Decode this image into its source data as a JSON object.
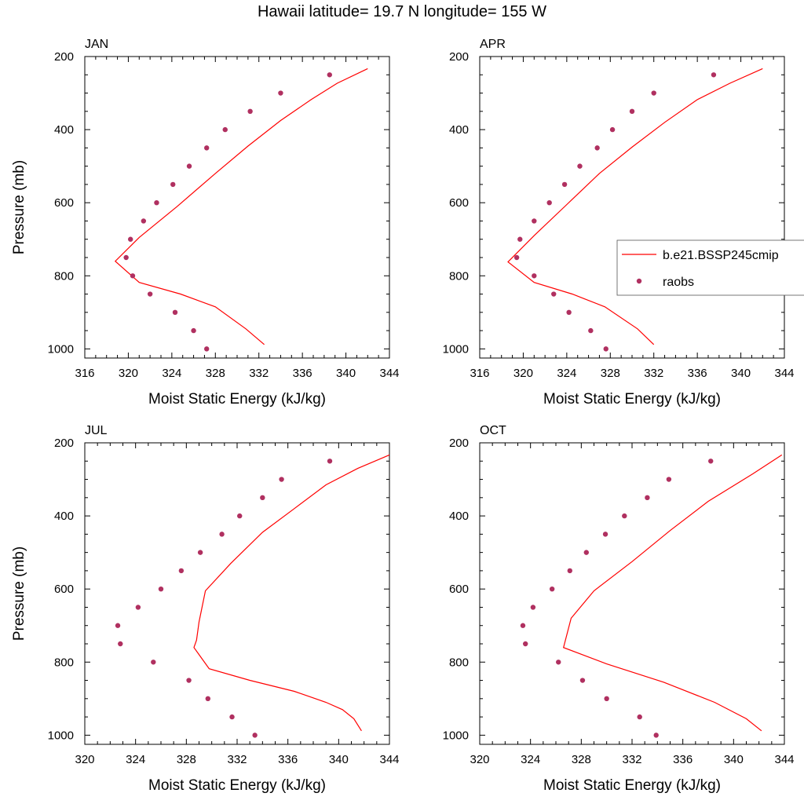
{
  "figure": {
    "title": "Hawaii  latitude= 19.7 N longitude= 155 W"
  },
  "colors": {
    "model": "#ff0000",
    "obs": "#b03060",
    "axis": "#000000"
  },
  "chart_data": [
    {
      "type": "line",
      "panel_label": "JAN",
      "xlabel": "Moist Static Energy (kJ/kg)",
      "ylabel": "Pressure (mb)",
      "xlim": [
        316,
        344
      ],
      "ylim": [
        1025,
        200
      ],
      "xticks": [
        316,
        320,
        324,
        328,
        332,
        336,
        340,
        344
      ],
      "yticks": [
        200,
        400,
        600,
        800,
        1000
      ],
      "show_ylabel": true,
      "legend": null,
      "series": [
        {
          "name": "b.e21.BSSP245cmip",
          "kind": "line",
          "x": [
            342.0,
            339.2,
            336.8,
            334.0,
            331.0,
            328.0,
            324.5,
            321.0,
            318.8,
            321.0,
            324.8,
            328.0,
            330.8,
            332.5
          ],
          "y": [
            233,
            273,
            318,
            375,
            445,
            520,
            610,
            695,
            760,
            818,
            850,
            885,
            945,
            988
          ]
        },
        {
          "name": "raobs",
          "kind": "scatter",
          "x": [
            338.5,
            334.0,
            331.2,
            328.9,
            327.2,
            325.6,
            324.1,
            322.6,
            321.4,
            320.2,
            319.8,
            320.4,
            322.0,
            324.3,
            326.0,
            327.2
          ],
          "y": [
            250,
            300,
            350,
            400,
            450,
            500,
            550,
            600,
            650,
            700,
            750,
            800,
            850,
            900,
            950,
            1000
          ]
        }
      ]
    },
    {
      "type": "line",
      "panel_label": "APR",
      "xlabel": "Moist Static Energy (kJ/kg)",
      "ylabel": "",
      "xlim": [
        316,
        344
      ],
      "ylim": [
        1025,
        200
      ],
      "xticks": [
        316,
        320,
        324,
        328,
        332,
        336,
        340,
        344
      ],
      "yticks": [
        200,
        400,
        600,
        800,
        1000
      ],
      "show_ylabel": false,
      "legend": {
        "placement": "right",
        "entries": [
          "b.e21.BSSP245cmip",
          "raobs"
        ]
      },
      "series": [
        {
          "name": "b.e21.BSSP245cmip",
          "kind": "line",
          "x": [
            342.0,
            339.0,
            336.0,
            333.0,
            330.0,
            327.0,
            324.0,
            321.0,
            318.6,
            321.0,
            324.5,
            327.5,
            330.5,
            332.0
          ],
          "y": [
            233,
            273,
            318,
            380,
            448,
            520,
            605,
            690,
            762,
            818,
            850,
            885,
            945,
            988
          ]
        },
        {
          "name": "raobs",
          "kind": "scatter",
          "x": [
            337.5,
            332.0,
            330.0,
            328.2,
            326.8,
            325.2,
            323.8,
            322.4,
            321.0,
            319.7,
            319.4,
            321.0,
            322.8,
            324.2,
            326.2,
            327.6
          ],
          "y": [
            250,
            300,
            350,
            400,
            450,
            500,
            550,
            600,
            650,
            700,
            750,
            800,
            850,
            900,
            950,
            1000
          ]
        }
      ]
    },
    {
      "type": "line",
      "panel_label": "JUL",
      "xlabel": "Moist Static Energy (kJ/kg)",
      "ylabel": "Pressure (mb)",
      "xlim": [
        320,
        344
      ],
      "ylim": [
        1025,
        200
      ],
      "xticks": [
        320,
        324,
        328,
        332,
        336,
        340,
        344
      ],
      "yticks": [
        200,
        400,
        600,
        800,
        1000
      ],
      "show_ylabel": true,
      "legend": null,
      "series": [
        {
          "name": "b.e21.BSSP245cmip",
          "kind": "line",
          "x": [
            344.0,
            341.5,
            339.0,
            336.5,
            334.0,
            331.5,
            329.5,
            329.0,
            328.8,
            328.6,
            329.8,
            333.0,
            336.5,
            339.0,
            340.3,
            341.2,
            341.8
          ],
          "y": [
            233,
            270,
            315,
            380,
            445,
            530,
            605,
            690,
            740,
            760,
            818,
            850,
            880,
            910,
            930,
            955,
            988
          ]
        },
        {
          "name": "raobs",
          "kind": "scatter",
          "x": [
            339.3,
            335.5,
            334.0,
            332.2,
            330.8,
            329.1,
            327.6,
            326.0,
            324.2,
            322.6,
            322.8,
            325.4,
            328.2,
            329.7,
            331.6,
            333.4
          ],
          "y": [
            250,
            300,
            350,
            400,
            450,
            500,
            550,
            600,
            650,
            700,
            750,
            800,
            850,
            900,
            950,
            1000
          ]
        }
      ]
    },
    {
      "type": "line",
      "panel_label": "OCT",
      "xlabel": "Moist Static Energy (kJ/kg)",
      "ylabel": "",
      "xlim": [
        320,
        344
      ],
      "ylim": [
        1025,
        200
      ],
      "xticks": [
        320,
        324,
        328,
        332,
        336,
        340,
        344
      ],
      "yticks": [
        200,
        400,
        600,
        800,
        1000
      ],
      "show_ylabel": false,
      "legend": null,
      "series": [
        {
          "name": "b.e21.BSSP245cmip",
          "kind": "line",
          "x": [
            343.8,
            341.5,
            338.0,
            335.0,
            332.0,
            329.0,
            327.2,
            326.6,
            330.0,
            334.5,
            338.5,
            341.0,
            342.2
          ],
          "y": [
            233,
            285,
            360,
            440,
            525,
            605,
            680,
            760,
            805,
            855,
            910,
            955,
            988
          ]
        },
        {
          "name": "raobs",
          "kind": "scatter",
          "x": [
            338.2,
            334.9,
            333.2,
            331.4,
            329.9,
            328.4,
            327.1,
            325.7,
            324.2,
            323.4,
            323.6,
            326.2,
            328.1,
            330.0,
            332.6,
            333.9
          ],
          "y": [
            250,
            300,
            350,
            400,
            450,
            500,
            550,
            600,
            650,
            700,
            750,
            800,
            850,
            900,
            950,
            1000
          ]
        }
      ]
    }
  ]
}
